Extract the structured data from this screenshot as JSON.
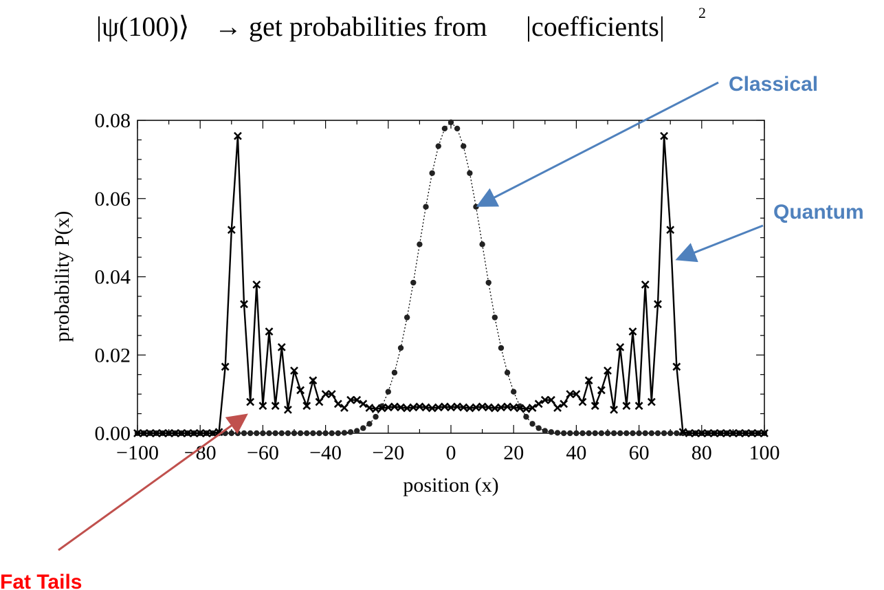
{
  "title": {
    "ket": "|ψ(100)⟩",
    "arrow": "→",
    "text": "get probabilities from",
    "abs_text": "|coefficients|",
    "exponent": "2"
  },
  "annotations": {
    "classical": {
      "label": "Classical",
      "color": "#4f81bd"
    },
    "quantum": {
      "label": "Quantum",
      "color": "#4f81bd"
    },
    "fat_tails": {
      "label": "Fat Tails",
      "label_color": "#ff0000",
      "arrow_color": "#c0504d"
    }
  },
  "chart_data": {
    "type": "scatter",
    "xlabel": "position (x)",
    "ylabel": "probability P(x)",
    "xlim": [
      -100,
      100
    ],
    "ylim": [
      0,
      0.08
    ],
    "xticks": [
      "−100",
      "−80",
      "−60",
      "−40",
      "−20",
      "0",
      "20",
      "40",
      "60",
      "80",
      "100"
    ],
    "yticks": [
      "0.00",
      "0.02",
      "0.04",
      "0.06",
      "0.08"
    ],
    "series": [
      {
        "style": "dots with dotted line",
        "x": [
          -100,
          -98,
          -96,
          -94,
          -92,
          -90,
          -88,
          -86,
          -84,
          -82,
          -80,
          -78,
          -76,
          -74,
          -72,
          -70,
          -68,
          -66,
          -64,
          -62,
          -60,
          -58,
          -56,
          -54,
          -52,
          -50,
          -48,
          -46,
          -44,
          -42,
          -40,
          -38,
          -36,
          -34,
          -32,
          -30,
          -28,
          -26,
          -24,
          -22,
          -20,
          -18,
          -16,
          -14,
          -12,
          -10,
          -8,
          -6,
          -4,
          -2,
          0,
          2,
          4,
          6,
          8,
          10,
          12,
          14,
          16,
          18,
          20,
          22,
          24,
          26,
          28,
          30,
          32,
          34,
          36,
          38,
          40,
          42,
          44,
          46,
          48,
          50,
          52,
          54,
          56,
          58,
          60,
          62,
          64,
          66,
          68,
          70,
          72,
          74,
          76,
          78,
          80,
          82,
          84,
          86,
          88,
          90,
          92,
          94,
          96,
          98,
          100
        ],
        "y": [
          0,
          0,
          0,
          0,
          0,
          0,
          0,
          0,
          0,
          0,
          0,
          0,
          0,
          0,
          0,
          0,
          0,
          0,
          0,
          0,
          0,
          0,
          0,
          0,
          0,
          0,
          0,
          0,
          0,
          0,
          0,
          0,
          0,
          0.0001,
          0.0003,
          0.0006,
          0.0013,
          0.0024,
          0.0042,
          0.0069,
          0.0106,
          0.0155,
          0.0218,
          0.0296,
          0.0385,
          0.0483,
          0.0579,
          0.0665,
          0.0734,
          0.0779,
          0.0795,
          0.0779,
          0.0734,
          0.0665,
          0.0579,
          0.0483,
          0.0385,
          0.0296,
          0.0218,
          0.0155,
          0.0106,
          0.0069,
          0.0042,
          0.0024,
          0.0013,
          0.0006,
          0.0003,
          0.0001,
          0,
          0,
          0,
          0,
          0,
          0,
          0,
          0,
          0,
          0,
          0,
          0,
          0,
          0,
          0,
          0,
          0,
          0,
          0,
          0,
          0,
          0,
          0,
          0,
          0,
          0,
          0,
          0,
          0,
          0,
          0,
          0,
          0
        ]
      },
      {
        "style": "crosses with solid line",
        "x": [
          -100,
          -98,
          -96,
          -94,
          -92,
          -90,
          -88,
          -86,
          -84,
          -82,
          -80,
          -78,
          -76,
          -74,
          -72,
          -70,
          -68,
          -66,
          -64,
          -62,
          -60,
          -58,
          -56,
          -54,
          -52,
          -50,
          -48,
          -46,
          -44,
          -42,
          -40,
          -38,
          -36,
          -34,
          -32,
          -30,
          -28,
          -26,
          -24,
          -22,
          -20,
          -18,
          -16,
          -14,
          -12,
          -10,
          -8,
          -6,
          -4,
          -2,
          0,
          2,
          4,
          6,
          8,
          10,
          12,
          14,
          16,
          18,
          20,
          22,
          24,
          26,
          28,
          30,
          32,
          34,
          36,
          38,
          40,
          42,
          44,
          46,
          48,
          50,
          52,
          54,
          56,
          58,
          60,
          62,
          64,
          66,
          68,
          70,
          72,
          74,
          76,
          78,
          80,
          82,
          84,
          86,
          88,
          90,
          92,
          94,
          96,
          98,
          100
        ],
        "y": [
          0,
          0,
          0,
          0,
          0,
          0,
          0,
          0,
          0,
          0,
          0,
          0,
          0,
          0.0003,
          0.017,
          0.052,
          0.076,
          0.033,
          0.008,
          0.038,
          0.007,
          0.026,
          0.007,
          0.022,
          0.006,
          0.016,
          0.011,
          0.007,
          0.0135,
          0.008,
          0.01,
          0.01,
          0.0075,
          0.0065,
          0.0085,
          0.0085,
          0.0075,
          0.0065,
          0.0062,
          0.0064,
          0.0066,
          0.0068,
          0.0066,
          0.0064,
          0.0066,
          0.0068,
          0.0066,
          0.0064,
          0.0066,
          0.0068,
          0.0066,
          0.0068,
          0.0066,
          0.0064,
          0.0066,
          0.0068,
          0.0066,
          0.0064,
          0.0066,
          0.0068,
          0.0066,
          0.0064,
          0.0062,
          0.0065,
          0.0075,
          0.0085,
          0.0085,
          0.0065,
          0.0075,
          0.01,
          0.01,
          0.008,
          0.0135,
          0.007,
          0.011,
          0.016,
          0.006,
          0.022,
          0.007,
          0.026,
          0.007,
          0.038,
          0.008,
          0.033,
          0.076,
          0.052,
          0.017,
          0.0003,
          0,
          0,
          0,
          0,
          0,
          0,
          0,
          0,
          0,
          0,
          0,
          0,
          0
        ]
      }
    ]
  }
}
